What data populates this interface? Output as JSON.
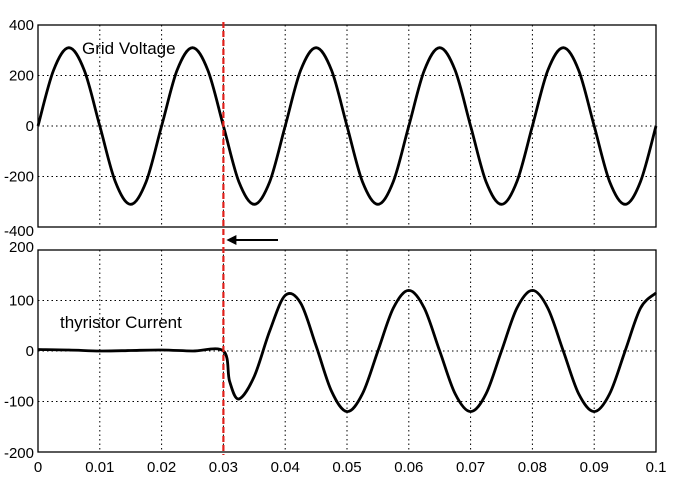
{
  "chart_data": [
    {
      "type": "line",
      "annotation": "Grid Voltage",
      "xlim": [
        0,
        0.1
      ],
      "ylim": [
        -400,
        400
      ],
      "grid": true,
      "yticks": [
        "400",
        "200",
        "0",
        "-200",
        "-400"
      ],
      "series": [
        {
          "x": [
            0.0,
            0.0025,
            0.005,
            0.0075,
            0.01,
            0.0125,
            0.015,
            0.0175,
            0.02,
            0.0225,
            0.025,
            0.0275,
            0.03,
            0.0325,
            0.035,
            0.0375,
            0.04,
            0.0425,
            0.045,
            0.0475,
            0.05,
            0.0525,
            0.055,
            0.0575,
            0.06,
            0.0625,
            0.065,
            0.0675,
            0.07,
            0.0725,
            0.075,
            0.0775,
            0.08,
            0.0825,
            0.085,
            0.0875,
            0.09,
            0.0925,
            0.095,
            0.0975,
            0.1
          ],
          "y": [
            0,
            220,
            310,
            220,
            0,
            -220,
            -310,
            -220,
            0,
            220,
            310,
            220,
            0,
            -220,
            -310,
            -220,
            0,
            220,
            310,
            220,
            0,
            -220,
            -310,
            -220,
            0,
            220,
            310,
            220,
            0,
            -220,
            -310,
            -220,
            0,
            220,
            310,
            220,
            0,
            -220,
            -310,
            -220,
            0
          ]
        }
      ]
    },
    {
      "type": "line",
      "annotation": "thyristor  Current",
      "xlim": [
        0,
        0.1
      ],
      "ylim": [
        -200,
        200
      ],
      "grid": true,
      "yticks": [
        "200",
        "100",
        "0",
        "-100",
        "-200"
      ],
      "xticks": [
        "0",
        "0.01",
        "0.02",
        "0.03",
        "0.04",
        "0.05",
        "0.06",
        "0.07",
        "0.08",
        "0.09",
        "0.1"
      ],
      "series": [
        {
          "x": [
            0.0,
            0.005,
            0.01,
            0.015,
            0.02,
            0.025,
            0.03,
            0.031,
            0.0325,
            0.035,
            0.0375,
            0.04,
            0.0425,
            0.045,
            0.0475,
            0.05,
            0.0525,
            0.055,
            0.0575,
            0.06,
            0.0625,
            0.065,
            0.0675,
            0.07,
            0.0725,
            0.075,
            0.0775,
            0.08,
            0.0825,
            0.085,
            0.0875,
            0.09,
            0.0925,
            0.095,
            0.0975,
            0.1
          ],
          "y": [
            3,
            2,
            0,
            1,
            2,
            0,
            0,
            -60,
            -95,
            -50,
            40,
            110,
            95,
            10,
            -80,
            -120,
            -85,
            0,
            85,
            120,
            85,
            0,
            -85,
            -120,
            -85,
            0,
            85,
            120,
            85,
            0,
            -85,
            -120,
            -85,
            0,
            85,
            115
          ]
        }
      ]
    }
  ],
  "event_marker": {
    "x": 0.03,
    "color": "#e0201b"
  },
  "line_color": "#000000"
}
